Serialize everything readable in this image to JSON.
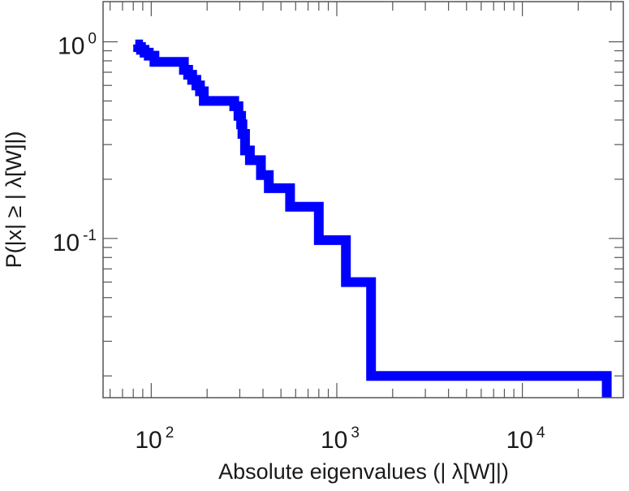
{
  "chart_data": {
    "type": "line",
    "title": "",
    "xlabel": "Absolute eigenvalues (|     λ[W]|)",
    "ylabel": "P(|x|  ≥ | λ[W]|)",
    "xscale": "log",
    "yscale": "log",
    "xlim": [
      55,
      35000
    ],
    "ylim": [
      0.0155,
      1.6
    ],
    "grid": false,
    "legend": "none",
    "x_ticks": [
      {
        "base": "10",
        "exp": "2",
        "value": 100
      },
      {
        "base": "10",
        "exp": "3",
        "value": 1000
      },
      {
        "base": "10",
        "exp": "4",
        "value": 10000
      }
    ],
    "y_ticks": [
      {
        "base": "10",
        "exp": "0",
        "value": 1
      },
      {
        "base": "10",
        "exp": "-1",
        "value": 0.1
      }
    ],
    "series": [
      {
        "color": "#0000ff",
        "step": "post",
        "x": [
          82,
          85,
          88,
          92,
          97,
          104,
          140,
          150,
          158,
          166,
          175,
          183,
          192,
          280,
          295,
          305,
          310,
          320,
          340,
          390,
          430,
          560,
          800,
          1120,
          1530,
          28500,
          28500
        ],
        "y": [
          0.97,
          0.94,
          0.91,
          0.88,
          0.85,
          0.79,
          0.79,
          0.72,
          0.68,
          0.64,
          0.6,
          0.56,
          0.5,
          0.47,
          0.42,
          0.38,
          0.34,
          0.28,
          0.25,
          0.21,
          0.18,
          0.145,
          0.098,
          0.06,
          0.02,
          0.02,
          0.0155
        ]
      }
    ]
  }
}
